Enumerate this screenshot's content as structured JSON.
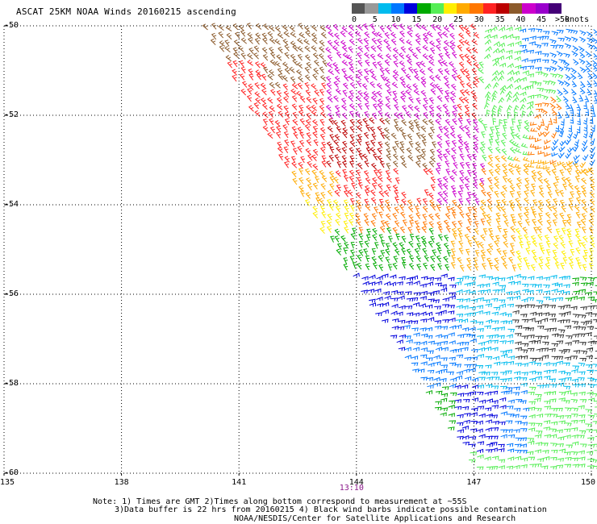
{
  "header": {
    "title": "ASCAT 25KM NOAA Winds 20160215 ascending"
  },
  "legend": {
    "labels": [
      "0",
      "5",
      "10",
      "15",
      "20",
      "25",
      "30",
      "35",
      "40",
      "45",
      ">50"
    ],
    "unit": "knots",
    "colors": [
      "#555555",
      "#999999",
      "#00bbee",
      "#0077ff",
      "#0000dd",
      "#00aa00",
      "#55ee55",
      "#ffee00",
      "#ffaa00",
      "#ff7700",
      "#ff2222",
      "#bb0000",
      "#8b5a2b",
      "#cc00cc",
      "#9900cc",
      "#440077"
    ]
  },
  "map": {
    "lon_ticks": [
      "135",
      "138",
      "141",
      "144",
      "147",
      "150"
    ],
    "lat_ticks": [
      "-50",
      "-52",
      "-54",
      "-56",
      "-58",
      "-60"
    ],
    "lon_range": [
      135,
      150
    ],
    "lat_range": [
      -60,
      -50
    ],
    "pass_time": "13:10",
    "pass_time_lon": 144,
    "grid": true
  },
  "notes": {
    "line1": "Note: 1) Times are GMT 2)Times along bottom correspond to measurement at ~55S",
    "line2": "3)Data buffer is 22 hrs from 20160215 4) Black wind barbs indicate possible contamination",
    "line3": "NOAA/NESDIS/Center for Satellite Applications and Research"
  }
}
